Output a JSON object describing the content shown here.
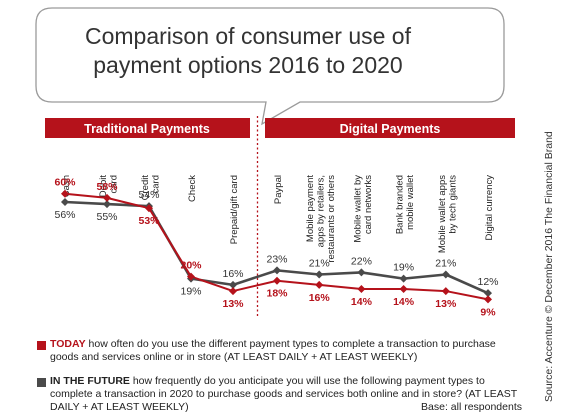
{
  "title": "Comparison of consumer use of payment options 2016 to 2020",
  "colors": {
    "today": "#b5121b",
    "future": "#4a4a4a",
    "banner": "#b5121b",
    "bubble_border": "#9a9a9a"
  },
  "banners": {
    "traditional": "Traditional Payments",
    "digital": "Digital Payments"
  },
  "chart_data": {
    "type": "line",
    "categories": [
      "Cash",
      "Debit card",
      "Credit card",
      "Check",
      "Prepaid/gift card",
      "Paypal",
      "Mobile payment apps by retailers, restaurants or others",
      "Mobile wallet by card networks",
      "Bank branded mobile wallet",
      "Mobile wallet apps by tech giants",
      "Digital currency"
    ],
    "category_lines": [
      [
        "Cash"
      ],
      [
        "Debit",
        "card"
      ],
      [
        "Credit",
        "card"
      ],
      [
        "Check"
      ],
      [
        "Prepaid/gift card"
      ],
      [
        "Paypal"
      ],
      [
        "Mobile payment",
        "apps by retailers,",
        "restaurants or others"
      ],
      [
        "Mobile wallet by",
        "card networks"
      ],
      [
        "Bank branded",
        "mobile wallet"
      ],
      [
        "Mobile wallet apps",
        "by tech giants"
      ],
      [
        "Digital currency"
      ]
    ],
    "series": [
      {
        "name": "TODAY",
        "values": [
          60,
          58,
          53,
          20,
          13,
          18,
          16,
          14,
          14,
          13,
          9
        ],
        "labels": [
          "60%",
          "58%",
          "53%",
          "20%",
          "13%",
          "18%",
          "16%",
          "14%",
          "14%",
          "13%",
          "9%"
        ]
      },
      {
        "name": "IN THE FUTURE",
        "values": [
          56,
          55,
          54,
          19,
          16,
          23,
          21,
          22,
          19,
          21,
          12
        ],
        "labels": [
          "56%",
          "55%",
          "54%",
          "19%",
          "16%",
          "23%",
          "21%",
          "22%",
          "19%",
          "21%",
          "12%"
        ]
      }
    ],
    "groups": [
      {
        "name": "Traditional Payments",
        "count": 5
      },
      {
        "name": "Digital Payments",
        "count": 6
      }
    ],
    "ylim": [
      0,
      70
    ],
    "grid": false
  },
  "legend": {
    "today": {
      "lead": "TODAY",
      "text": " how often do you use the different payment types to complete a transaction to purchase goods and services online or in store (AT LEAST DAILY + AT LEAST WEEKLY)"
    },
    "future": {
      "lead": "IN THE FUTURE",
      "text": " how frequently do you anticipate you will use the following payment types to complete a transaction in 2020 to purchase goods and services both online and in store? (AT LEAST DAILY + AT LEAST WEEKLY)",
      "base": "Base: all respondents"
    }
  },
  "source": "Source: Accenture © December 2016 The Financial Brand"
}
